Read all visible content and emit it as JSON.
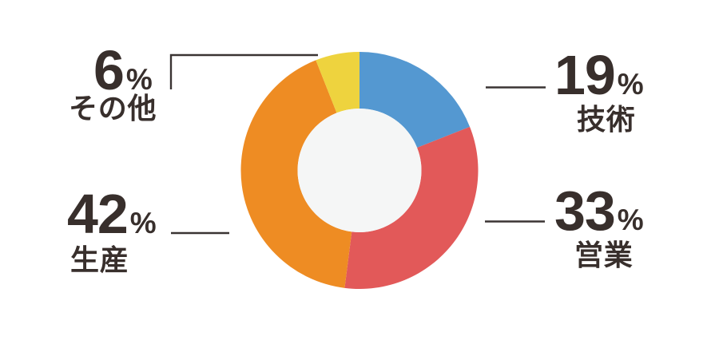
{
  "figure": {
    "background": "#ffffff"
  },
  "chart_data": {
    "type": "pie",
    "subtype": "donut",
    "title": "",
    "unit": "%",
    "direction": "clockwise",
    "start_angle_deg": 0,
    "inner_radius_ratio": 0.522,
    "center_fill": "#f5f6f6",
    "text_color": "#382f2c",
    "leader_line_color": "#3a3433",
    "legend_position": "none",
    "segments": [
      {
        "id": "tech",
        "label": "技術",
        "value": 19,
        "color": "#5498d1"
      },
      {
        "id": "sales",
        "label": "営業",
        "value": 33,
        "color": "#e25959"
      },
      {
        "id": "production",
        "label": "生産",
        "value": 42,
        "color": "#ee8c23"
      },
      {
        "id": "others",
        "label": "その他",
        "value": 6,
        "color": "#eed33e"
      }
    ]
  }
}
